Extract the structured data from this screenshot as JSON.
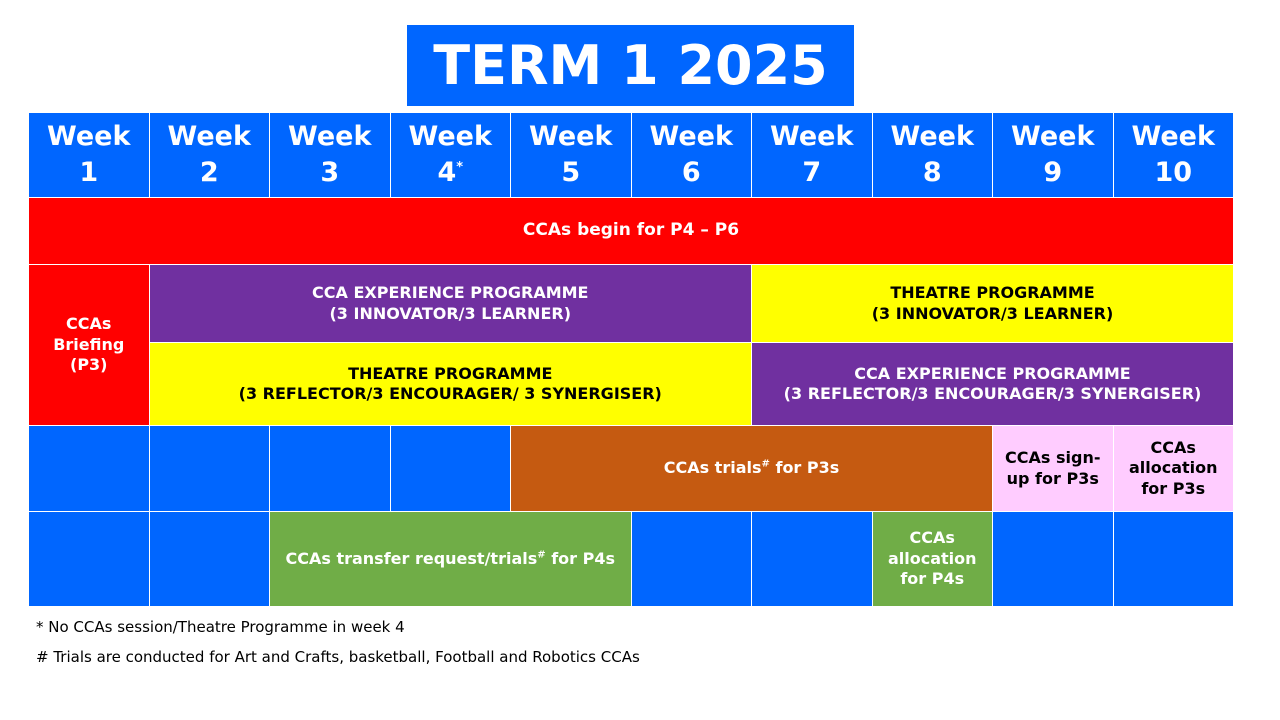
{
  "title": "TERM 1 2025",
  "week_word": "Week",
  "weeks": [
    {
      "num": "1",
      "mark": ""
    },
    {
      "num": "2",
      "mark": ""
    },
    {
      "num": "3",
      "mark": ""
    },
    {
      "num": "4",
      "mark": "*"
    },
    {
      "num": "5",
      "mark": ""
    },
    {
      "num": "6",
      "mark": ""
    },
    {
      "num": "7",
      "mark": ""
    },
    {
      "num": "8",
      "mark": ""
    },
    {
      "num": "9",
      "mark": ""
    },
    {
      "num": "10",
      "mark": ""
    }
  ],
  "rows": {
    "ccas_begin": "CCAs begin for P4 – P6",
    "briefing": {
      "line1": "CCAs",
      "line2": "Briefing",
      "line3": "(P3)"
    },
    "cca_exp_1": {
      "line1": "CCA EXPERIENCE PROGRAMME",
      "line2": "(3 INNOVATOR/3 LEARNER)"
    },
    "theatre_1": {
      "line1": "THEATRE PROGRAMME",
      "line2": "(3 INNOVATOR/3 LEARNER)"
    },
    "theatre_2": {
      "line1": "THEATRE PROGRAMME",
      "line2": "(3 REFLECTOR/3 ENCOURAGER/ 3 SYNERGISER)"
    },
    "cca_exp_2": {
      "line1": "CCA EXPERIENCE PROGRAMME",
      "line2": "(3 REFLECTOR/3 ENCOURAGER/3 SYNERGISER)"
    },
    "trials_p3": {
      "before": "CCAs trials",
      "mark": "#",
      "after": " for P3s"
    },
    "signup_p3": {
      "line1": "CCAs sign-",
      "line2": "up for P3s"
    },
    "alloc_p3": {
      "line1": "CCAs",
      "line2": "allocation",
      "line3": "for P3s"
    },
    "transfer_p4": {
      "before": "CCAs transfer request/trials",
      "mark": "#",
      "after": " for P4s"
    },
    "alloc_p4": {
      "line1": "CCAs",
      "line2": "allocation",
      "line3": "for P4s"
    }
  },
  "notes": {
    "note1": "* No CCAs session/Theatre Programme in week 4",
    "note2": "# Trials are conducted for Art and Crafts, basketball, Football and Robotics CCAs"
  },
  "colors": {
    "blue": "#0066ff",
    "red": "#ff0000",
    "purple": "#7030a0",
    "yellow": "#ffff00",
    "orange": "#c55a11",
    "pink": "#ffccff",
    "green": "#70ad47"
  }
}
